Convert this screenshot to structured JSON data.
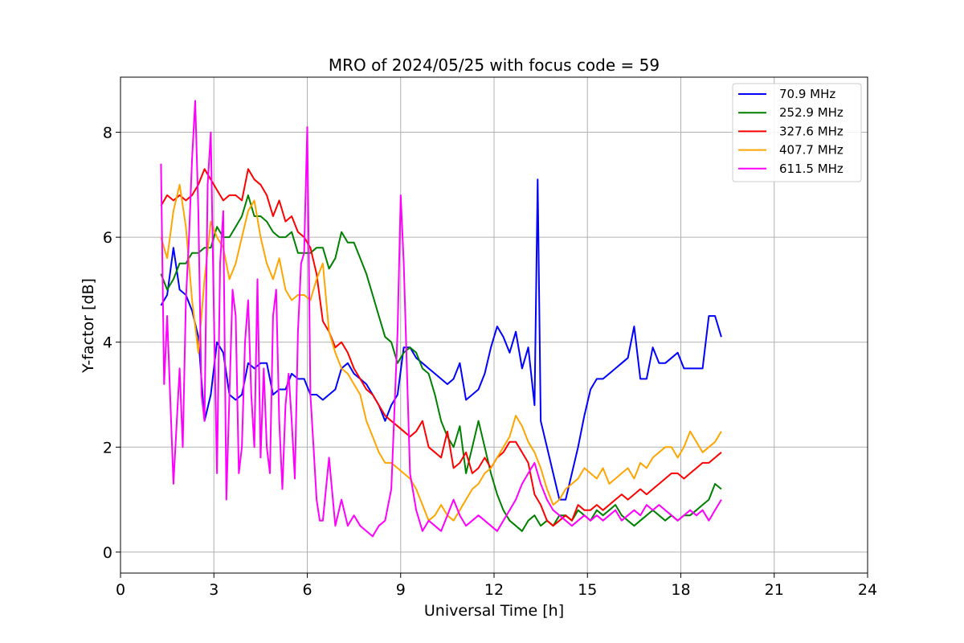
{
  "chart_data": {
    "type": "line",
    "title": "MRO of 2024/05/25 with focus code = 59",
    "xlabel": "Universal Time [h]",
    "ylabel": "Y-factor [dB]",
    "xlim": [
      0,
      24
    ],
    "ylim": [
      -0.4,
      9.05
    ],
    "x_ticks": [
      0,
      3,
      6,
      9,
      12,
      15,
      18,
      21,
      24
    ],
    "y_ticks": [
      0,
      2,
      4,
      6,
      8
    ],
    "grid": true,
    "legend_position": "top-right",
    "series": [
      {
        "name": "70.9 MHz",
        "color": "#0000ff",
        "x": [
          1.3,
          1.5,
          1.7,
          1.9,
          2.1,
          2.3,
          2.5,
          2.7,
          2.9,
          3.1,
          3.3,
          3.5,
          3.7,
          3.9,
          4.1,
          4.3,
          4.5,
          4.7,
          4.9,
          5.1,
          5.3,
          5.5,
          5.7,
          5.9,
          6.1,
          6.3,
          6.5,
          6.7,
          6.9,
          7.1,
          7.3,
          7.5,
          7.7,
          7.9,
          8.1,
          8.3,
          8.5,
          8.7,
          8.9,
          9.1,
          9.3,
          9.5,
          9.7,
          9.9,
          10.1,
          10.3,
          10.5,
          10.7,
          10.9,
          11.1,
          11.3,
          11.5,
          11.7,
          11.9,
          12.1,
          12.3,
          12.5,
          12.7,
          12.9,
          13.1,
          13.3,
          13.4,
          13.5,
          13.7,
          13.9,
          14.1,
          14.3,
          14.5,
          14.7,
          14.9,
          15.1,
          15.3,
          15.5,
          15.7,
          15.9,
          16.1,
          16.3,
          16.5,
          16.7,
          16.9,
          17.1,
          17.3,
          17.5,
          17.7,
          17.9,
          18.1,
          18.3,
          18.5,
          18.7,
          18.9,
          19.1,
          19.3
        ],
        "y": [
          4.7,
          4.9,
          5.8,
          5.0,
          4.9,
          4.6,
          4.1,
          2.5,
          3.0,
          4.0,
          3.8,
          3.0,
          2.9,
          3.0,
          3.6,
          3.5,
          3.6,
          3.6,
          3.0,
          3.1,
          3.1,
          3.4,
          3.3,
          3.3,
          3.0,
          3.0,
          2.9,
          3.0,
          3.1,
          3.5,
          3.6,
          3.4,
          3.3,
          3.2,
          3.0,
          2.8,
          2.5,
          2.8,
          3.0,
          3.9,
          3.9,
          3.7,
          3.6,
          3.5,
          3.4,
          3.3,
          3.2,
          3.3,
          3.6,
          2.9,
          3.0,
          3.1,
          3.4,
          3.9,
          4.3,
          4.1,
          3.8,
          4.2,
          3.5,
          3.9,
          2.8,
          7.1,
          2.5,
          2.0,
          1.5,
          1.0,
          1.0,
          1.5,
          2.0,
          2.6,
          3.1,
          3.3,
          3.3,
          3.4,
          3.5,
          3.6,
          3.7,
          4.3,
          3.3,
          3.3,
          3.9,
          3.6,
          3.6,
          3.7,
          3.8,
          3.5,
          3.5,
          3.5,
          3.5,
          4.5,
          4.5,
          4.1
        ]
      },
      {
        "name": "252.9 MHz",
        "color": "#008000",
        "x": [
          1.3,
          1.5,
          1.7,
          1.9,
          2.1,
          2.3,
          2.5,
          2.7,
          2.9,
          3.1,
          3.3,
          3.5,
          3.7,
          3.9,
          4.1,
          4.3,
          4.5,
          4.7,
          4.9,
          5.1,
          5.3,
          5.5,
          5.7,
          5.9,
          6.1,
          6.3,
          6.5,
          6.7,
          6.9,
          7.1,
          7.3,
          7.5,
          7.7,
          7.9,
          8.1,
          8.3,
          8.5,
          8.7,
          8.9,
          9.1,
          9.3,
          9.5,
          9.7,
          9.9,
          10.1,
          10.3,
          10.5,
          10.7,
          10.9,
          11.1,
          11.3,
          11.5,
          11.7,
          11.9,
          12.1,
          12.3,
          12.5,
          12.7,
          12.9,
          13.1,
          13.3,
          13.5,
          13.7,
          13.9,
          14.1,
          14.3,
          14.5,
          14.7,
          14.9,
          15.1,
          15.3,
          15.5,
          15.7,
          15.9,
          16.1,
          16.3,
          16.5,
          16.7,
          16.9,
          17.1,
          17.3,
          17.5,
          17.7,
          17.9,
          18.1,
          18.3,
          18.5,
          18.7,
          18.9,
          19.1,
          19.3
        ],
        "y": [
          5.3,
          5.0,
          5.2,
          5.5,
          5.5,
          5.7,
          5.7,
          5.8,
          5.8,
          6.2,
          6.0,
          6.0,
          6.2,
          6.4,
          6.8,
          6.4,
          6.4,
          6.3,
          6.1,
          6.0,
          6.0,
          6.1,
          5.7,
          5.7,
          5.7,
          5.8,
          5.8,
          5.4,
          5.6,
          6.1,
          5.9,
          5.9,
          5.6,
          5.3,
          4.9,
          4.5,
          4.1,
          4.0,
          3.6,
          3.8,
          3.9,
          3.8,
          3.5,
          3.4,
          3.0,
          2.5,
          2.2,
          2.0,
          2.4,
          1.5,
          2.0,
          2.5,
          2.0,
          1.5,
          1.1,
          0.8,
          0.6,
          0.5,
          0.4,
          0.6,
          0.7,
          0.5,
          0.6,
          0.5,
          0.7,
          0.7,
          0.6,
          0.8,
          0.7,
          0.6,
          0.8,
          0.7,
          0.8,
          0.9,
          0.7,
          0.6,
          0.5,
          0.6,
          0.7,
          0.8,
          0.7,
          0.6,
          0.7,
          0.6,
          0.7,
          0.7,
          0.8,
          0.9,
          1.0,
          1.3,
          1.2
        ]
      },
      {
        "name": "327.6 MHz",
        "color": "#ff0000",
        "x": [
          1.3,
          1.5,
          1.7,
          1.9,
          2.1,
          2.3,
          2.5,
          2.7,
          2.9,
          3.1,
          3.3,
          3.5,
          3.7,
          3.9,
          4.1,
          4.3,
          4.5,
          4.7,
          4.9,
          5.1,
          5.3,
          5.5,
          5.7,
          5.9,
          6.1,
          6.3,
          6.5,
          6.7,
          6.9,
          7.1,
          7.3,
          7.5,
          7.7,
          7.9,
          8.1,
          8.3,
          8.5,
          8.7,
          8.9,
          9.1,
          9.3,
          9.5,
          9.7,
          9.9,
          10.1,
          10.3,
          10.5,
          10.7,
          10.9,
          11.1,
          11.3,
          11.5,
          11.7,
          11.9,
          12.1,
          12.3,
          12.5,
          12.7,
          12.9,
          13.1,
          13.3,
          13.5,
          13.7,
          13.9,
          14.1,
          14.3,
          14.5,
          14.7,
          14.9,
          15.1,
          15.3,
          15.5,
          15.7,
          15.9,
          16.1,
          16.3,
          16.5,
          16.7,
          16.9,
          17.1,
          17.3,
          17.5,
          17.7,
          17.9,
          18.1,
          18.3,
          18.5,
          18.7,
          18.9,
          19.1,
          19.3
        ],
        "y": [
          6.6,
          6.8,
          6.7,
          6.8,
          6.7,
          6.8,
          7.0,
          7.3,
          7.1,
          6.9,
          6.7,
          6.8,
          6.8,
          6.7,
          7.3,
          7.1,
          7.0,
          6.8,
          6.4,
          6.7,
          6.3,
          6.4,
          6.1,
          6.0,
          5.8,
          5.3,
          4.4,
          4.2,
          3.9,
          4.0,
          3.8,
          3.5,
          3.3,
          3.1,
          3.0,
          2.8,
          2.6,
          2.5,
          2.4,
          2.3,
          2.2,
          2.3,
          2.5,
          2.0,
          1.9,
          1.8,
          2.3,
          1.6,
          1.7,
          1.9,
          1.5,
          1.6,
          1.8,
          1.6,
          1.8,
          1.9,
          2.1,
          2.1,
          1.9,
          1.7,
          1.1,
          0.9,
          0.6,
          0.5,
          0.6,
          0.7,
          0.6,
          0.9,
          0.8,
          0.8,
          0.9,
          0.8,
          0.9,
          1.0,
          1.1,
          1.0,
          1.1,
          1.2,
          1.1,
          1.2,
          1.3,
          1.4,
          1.5,
          1.5,
          1.4,
          1.5,
          1.6,
          1.7,
          1.7,
          1.8,
          1.9
        ]
      },
      {
        "name": "407.7 MHz",
        "color": "#ffa500",
        "x": [
          1.3,
          1.5,
          1.7,
          1.9,
          2.1,
          2.3,
          2.5,
          2.7,
          2.9,
          3.1,
          3.3,
          3.5,
          3.7,
          3.9,
          4.1,
          4.3,
          4.5,
          4.7,
          4.9,
          5.1,
          5.3,
          5.5,
          5.7,
          5.9,
          6.1,
          6.3,
          6.5,
          6.7,
          6.9,
          7.1,
          7.3,
          7.5,
          7.7,
          7.9,
          8.1,
          8.3,
          8.5,
          8.7,
          8.9,
          9.1,
          9.3,
          9.5,
          9.7,
          9.9,
          10.1,
          10.3,
          10.5,
          10.7,
          10.9,
          11.1,
          11.3,
          11.5,
          11.7,
          11.9,
          12.1,
          12.3,
          12.5,
          12.7,
          12.9,
          13.1,
          13.3,
          13.5,
          13.7,
          13.9,
          14.1,
          14.3,
          14.5,
          14.7,
          14.9,
          15.1,
          15.3,
          15.5,
          15.7,
          15.9,
          16.1,
          16.3,
          16.5,
          16.7,
          16.9,
          17.1,
          17.3,
          17.5,
          17.7,
          17.9,
          18.1,
          18.3,
          18.5,
          18.7,
          18.9,
          19.1,
          19.3
        ],
        "y": [
          6.0,
          5.6,
          6.5,
          7.0,
          6.2,
          4.8,
          3.8,
          5.2,
          6.3,
          6.0,
          5.8,
          5.2,
          5.5,
          6.0,
          6.5,
          6.7,
          6.0,
          5.5,
          5.2,
          5.6,
          5.0,
          4.8,
          4.9,
          4.9,
          4.8,
          5.2,
          5.5,
          4.2,
          3.8,
          3.5,
          3.4,
          3.2,
          3.0,
          2.5,
          2.2,
          1.9,
          1.7,
          1.7,
          1.6,
          1.5,
          1.4,
          1.2,
          0.9,
          0.6,
          0.7,
          0.9,
          0.7,
          0.6,
          0.8,
          1.0,
          1.2,
          1.3,
          1.5,
          1.6,
          1.8,
          2.0,
          2.2,
          2.6,
          2.4,
          2.1,
          1.9,
          1.6,
          1.2,
          0.9,
          1.0,
          1.2,
          1.3,
          1.4,
          1.6,
          1.5,
          1.4,
          1.6,
          1.3,
          1.4,
          1.5,
          1.6,
          1.4,
          1.7,
          1.6,
          1.8,
          1.9,
          2.0,
          2.0,
          1.8,
          2.0,
          2.3,
          2.1,
          1.9,
          2.0,
          2.1,
          2.3
        ]
      },
      {
        "name": "611.5 MHz",
        "color": "#ff00ff",
        "x": [
          1.3,
          1.4,
          1.5,
          1.7,
          1.9,
          2.0,
          2.1,
          2.2,
          2.3,
          2.4,
          2.5,
          2.6,
          2.7,
          2.8,
          2.9,
          3.0,
          3.1,
          3.2,
          3.3,
          3.4,
          3.5,
          3.6,
          3.7,
          3.8,
          3.9,
          4.0,
          4.1,
          4.2,
          4.3,
          4.4,
          4.5,
          4.6,
          4.7,
          4.8,
          4.9,
          5.0,
          5.1,
          5.2,
          5.3,
          5.4,
          5.5,
          5.6,
          5.7,
          5.8,
          5.9,
          6.0,
          6.1,
          6.2,
          6.3,
          6.4,
          6.5,
          6.7,
          6.9,
          7.1,
          7.3,
          7.5,
          7.7,
          7.9,
          8.1,
          8.3,
          8.5,
          8.7,
          8.9,
          9.0,
          9.1,
          9.3,
          9.5,
          9.7,
          9.9,
          10.1,
          10.3,
          10.5,
          10.7,
          10.9,
          11.1,
          11.3,
          11.5,
          11.7,
          11.9,
          12.1,
          12.3,
          12.5,
          12.7,
          12.9,
          13.1,
          13.3,
          13.5,
          13.7,
          13.9,
          14.1,
          14.3,
          14.5,
          14.7,
          14.9,
          15.1,
          15.3,
          15.5,
          15.7,
          15.9,
          16.1,
          16.3,
          16.5,
          16.7,
          16.9,
          17.1,
          17.3,
          17.5,
          17.7,
          17.9,
          18.1,
          18.3,
          18.5,
          18.7,
          18.9,
          19.1,
          19.3
        ],
        "y": [
          7.4,
          3.2,
          4.5,
          1.3,
          3.5,
          2.0,
          4.8,
          6.0,
          7.5,
          8.6,
          6.5,
          3.0,
          2.5,
          7.0,
          8.0,
          4.5,
          1.5,
          5.5,
          6.5,
          1.0,
          3.0,
          5.0,
          4.5,
          1.5,
          2.0,
          4.0,
          4.8,
          3.0,
          2.0,
          5.2,
          1.8,
          3.5,
          2.0,
          1.5,
          4.5,
          5.0,
          2.5,
          1.2,
          2.8,
          3.4,
          2.5,
          1.4,
          4.2,
          5.5,
          5.7,
          8.1,
          3.0,
          2.0,
          1.0,
          0.6,
          0.6,
          1.8,
          0.5,
          1.0,
          0.5,
          0.7,
          0.5,
          0.4,
          0.3,
          0.5,
          0.6,
          1.2,
          4.2,
          6.8,
          5.5,
          1.5,
          0.8,
          0.4,
          0.6,
          0.5,
          0.4,
          0.7,
          1.0,
          0.7,
          0.5,
          0.6,
          0.7,
          0.6,
          0.5,
          0.4,
          0.6,
          0.8,
          1.0,
          1.3,
          1.5,
          1.7,
          1.3,
          1.0,
          0.8,
          0.7,
          0.6,
          0.5,
          0.6,
          0.7,
          0.6,
          0.7,
          0.6,
          0.7,
          0.8,
          0.6,
          0.7,
          0.8,
          0.7,
          0.9,
          0.8,
          0.9,
          0.8,
          0.7,
          0.6,
          0.7,
          0.8,
          0.7,
          0.8,
          0.6,
          0.8,
          1.0
        ]
      }
    ]
  }
}
